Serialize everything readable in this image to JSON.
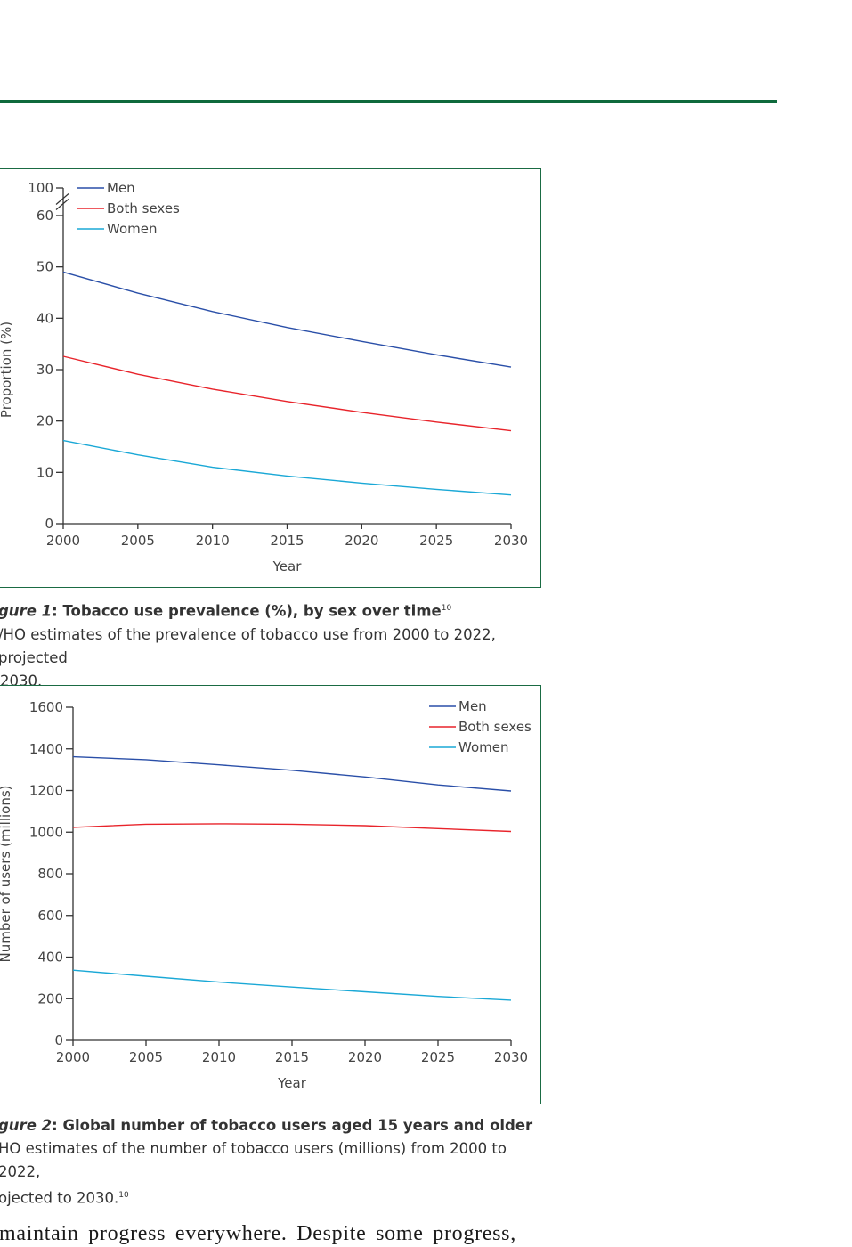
{
  "colors": {
    "men": "#2a4fa8",
    "both": "#e8242b",
    "women": "#1aa8d6",
    "frame": "#1a6b43",
    "rule": "#0f6a3c"
  },
  "figure1": {
    "caption_label": "gure 1",
    "caption_title": ": Tobacco use prevalence (%), by sex over time",
    "caption_ref": "10",
    "caption_text_line1": "/HO estimates of the prevalence of tobacco use from 2000 to 2022, projected",
    "caption_text_line2": "2030."
  },
  "figure2": {
    "caption_label": "gure 2",
    "caption_title": ": Global number of tobacco users aged 15 years and older",
    "caption_text_line1": "HO estimates of the number of tobacco users (millions) from 2000 to 2022,",
    "caption_text_line2": "ojected to 2030.",
    "caption_ref": "10"
  },
  "body_text": "maintain progress everywhere. Despite some progress,",
  "chart_data": [
    {
      "type": "line",
      "xlabel": "Year",
      "ylabel": "Proportion (%)",
      "xlim": [
        2000,
        2030
      ],
      "ylim": [
        0,
        60
      ],
      "y_axis_break": true,
      "x_ticks": [
        2000,
        2005,
        2010,
        2015,
        2020,
        2025,
        2030
      ],
      "y_ticks": [
        0,
        10,
        20,
        30,
        40,
        50,
        60,
        100
      ],
      "legend_position": "top-left",
      "x": [
        2000,
        2005,
        2010,
        2015,
        2020,
        2025,
        2030
      ],
      "series": [
        {
          "name": "Men",
          "color_key": "men",
          "values": [
            49.0,
            44.9,
            41.3,
            38.2,
            35.5,
            32.9,
            30.5
          ]
        },
        {
          "name": "Both sexes",
          "color_key": "both",
          "values": [
            32.6,
            29.1,
            26.2,
            23.8,
            21.7,
            19.8,
            18.1
          ]
        },
        {
          "name": "Women",
          "color_key": "women",
          "values": [
            16.2,
            13.4,
            11.0,
            9.3,
            7.9,
            6.7,
            5.6
          ]
        }
      ]
    },
    {
      "type": "line",
      "xlabel": "Year",
      "ylabel": "Number of users (millions)",
      "xlim": [
        2000,
        2030
      ],
      "ylim": [
        0,
        1600
      ],
      "x_ticks": [
        2000,
        2005,
        2010,
        2015,
        2020,
        2025,
        2030
      ],
      "y_ticks": [
        0,
        200,
        400,
        600,
        800,
        1000,
        1200,
        1400,
        1600
      ],
      "legend_position": "top-right",
      "x": [
        2000,
        2005,
        2010,
        2015,
        2020,
        2025,
        2030
      ],
      "series": [
        {
          "name": "Men",
          "color_key": "men",
          "values": [
            1362,
            1348,
            1323,
            1297,
            1265,
            1227,
            1198
          ]
        },
        {
          "name": "Both sexes",
          "color_key": "both",
          "values": [
            1023,
            1038,
            1040,
            1038,
            1031,
            1017,
            1003
          ]
        },
        {
          "name": "Women",
          "color_key": "women",
          "values": [
            337,
            308,
            280,
            256,
            233,
            211,
            193
          ]
        }
      ]
    }
  ]
}
